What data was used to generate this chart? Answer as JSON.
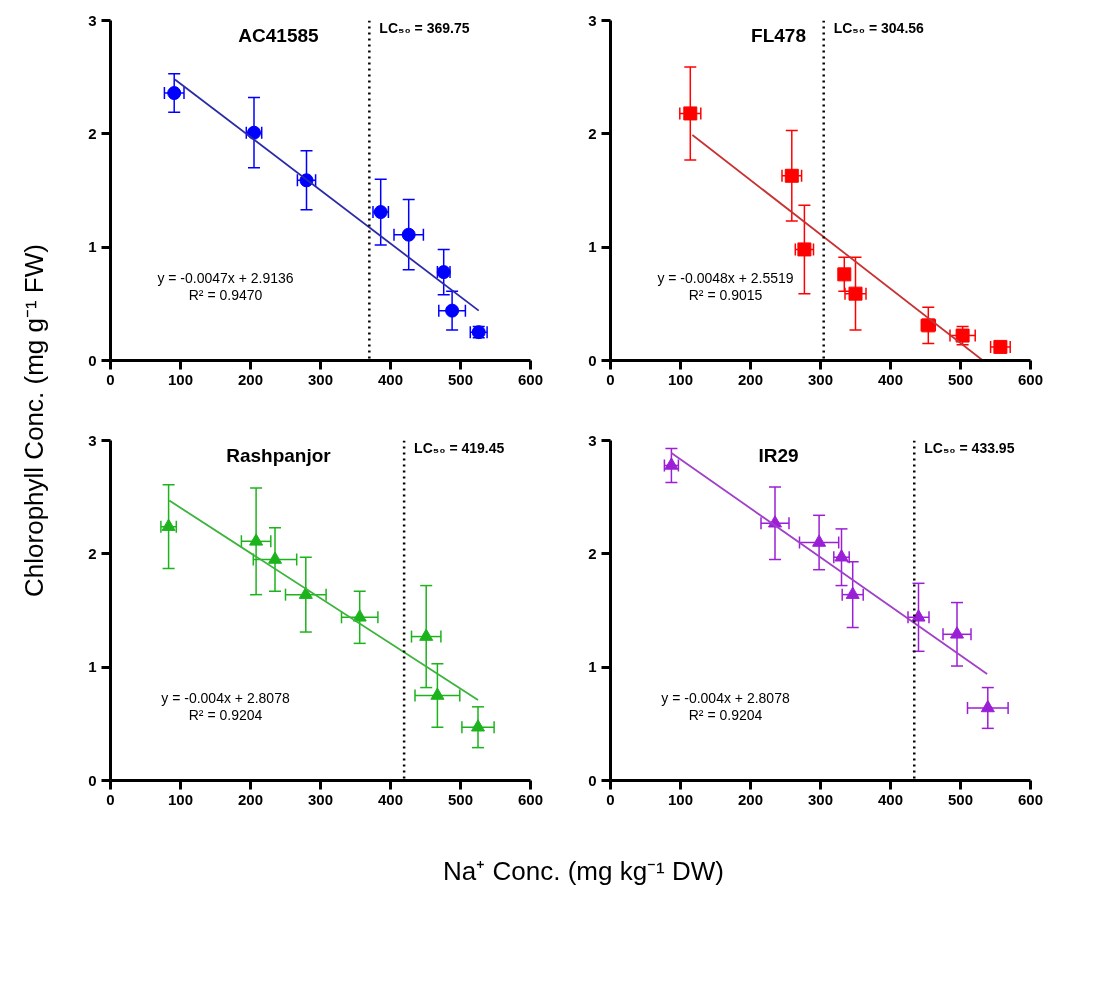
{
  "chart_data": [
    {
      "type": "scatter",
      "title": "AC41585",
      "ylabel": "Chlorophyll Conc. (mg g⁻¹ FW)",
      "xlim": [
        0,
        600
      ],
      "xticks": [
        0,
        100,
        200,
        300,
        400,
        500,
        600
      ],
      "ylim": [
        0,
        3
      ],
      "yticks": [
        0,
        1,
        2,
        3
      ],
      "marker": "circle",
      "grid": false,
      "series": [
        {
          "color": "#0000ff",
          "x": [
            91,
            205,
            280,
            386,
            426,
            476,
            488,
            526
          ],
          "values": [
            2.36,
            2.01,
            1.59,
            1.31,
            1.11,
            0.78,
            0.44,
            0.25
          ],
          "errors": [
            0.17,
            0.31,
            0.26,
            0.29,
            0.31,
            0.2,
            0.17,
            0.05
          ],
          "xerrors": [
            14,
            11,
            13,
            11,
            21,
            9,
            19,
            12
          ]
        },
        {
          "type": "line",
          "marker": "none",
          "color": "#2a2aa8",
          "x": [
            92,
            526
          ],
          "values": [
            2.48,
            0.44
          ]
        }
      ],
      "ref_lines": [
        {
          "axis": "x",
          "value": 369.75,
          "label": "LC₅₀ = 369.75",
          "color": "#000000",
          "line_style": "dotted"
        }
      ],
      "annotations": [
        "y = -0.0047x + 2.9136",
        "R² = 0.9470"
      ]
    },
    {
      "type": "scatter",
      "title": "FL478",
      "xlim": [
        0,
        600
      ],
      "xticks": [
        0,
        100,
        200,
        300,
        400,
        500,
        600
      ],
      "ylim": [
        0,
        3
      ],
      "yticks": [
        0,
        1,
        2,
        3
      ],
      "marker": "square",
      "grid": false,
      "series": [
        {
          "color": "#ff0000",
          "x": [
            114,
            259,
            277,
            334,
            350,
            454,
            503,
            557
          ],
          "values": [
            2.18,
            1.63,
            0.98,
            0.76,
            0.59,
            0.31,
            0.22,
            0.12
          ],
          "errors": [
            0.41,
            0.4,
            0.39,
            0.15,
            0.32,
            0.16,
            0.08,
            0.03
          ],
          "xerrors": [
            15,
            14,
            13,
            7,
            15,
            10,
            18,
            14
          ]
        },
        {
          "type": "line",
          "marker": "none",
          "color": "#c83232",
          "x": [
            117,
            532
          ],
          "values": [
            1.99,
            0.0
          ]
        }
      ],
      "ref_lines": [
        {
          "axis": "x",
          "value": 304.56,
          "label": "LC₅₀ = 304.56",
          "color": "#000000",
          "line_style": "dotted"
        }
      ],
      "annotations": [
        "y = -0.0048x + 2.5519",
        "R² = 0.9015"
      ]
    },
    {
      "type": "scatter",
      "title": "Rashpanjor",
      "xlabel": "Na⁺ Conc. (mg kg⁻¹ DW)",
      "xlim": [
        0,
        600
      ],
      "xticks": [
        0,
        100,
        200,
        300,
        400,
        500,
        600
      ],
      "ylim": [
        0,
        3
      ],
      "yticks": [
        0,
        1,
        2,
        3
      ],
      "marker": "triangle",
      "grid": false,
      "series": [
        {
          "color": "#1db31d",
          "x": [
            83,
            208,
            235,
            279,
            356,
            451,
            467,
            525
          ],
          "values": [
            2.24,
            2.11,
            1.95,
            1.64,
            1.44,
            1.27,
            0.75,
            0.47
          ],
          "errors": [
            0.37,
            0.47,
            0.28,
            0.33,
            0.23,
            0.45,
            0.28,
            0.18
          ],
          "xerrors": [
            11,
            21,
            31,
            29,
            26,
            21,
            32,
            23
          ]
        },
        {
          "type": "line",
          "marker": "none",
          "color": "#3cb43c",
          "x": [
            84,
            525
          ],
          "values": [
            2.47,
            0.71
          ]
        }
      ],
      "ref_lines": [
        {
          "axis": "x",
          "value": 419.45,
          "label": "LC₅₀ = 419.45",
          "color": "#000000",
          "line_style": "dotted"
        }
      ],
      "annotations": [
        "y = -0.004x + 2.8078",
        "R² = 0.9204"
      ]
    },
    {
      "type": "scatter",
      "title": "IR29",
      "xlim": [
        0,
        600
      ],
      "xticks": [
        0,
        100,
        200,
        300,
        400,
        500,
        600
      ],
      "ylim": [
        0,
        3
      ],
      "yticks": [
        0,
        1,
        2,
        3
      ],
      "marker": "triangle",
      "grid": false,
      "series": [
        {
          "color": "#9b1fd6",
          "x": [
            87,
            235,
            298,
            330,
            346,
            440,
            495,
            539
          ],
          "values": [
            2.78,
            2.27,
            2.1,
            1.97,
            1.64,
            1.44,
            1.29,
            0.64
          ],
          "errors": [
            0.15,
            0.32,
            0.24,
            0.25,
            0.29,
            0.3,
            0.28,
            0.18
          ],
          "xerrors": [
            10,
            20,
            28,
            11,
            15,
            15,
            20,
            29
          ]
        },
        {
          "type": "line",
          "marker": "none",
          "color": "#a040c8",
          "x": [
            87,
            538
          ],
          "values": [
            2.89,
            0.94
          ]
        }
      ],
      "ref_lines": [
        {
          "axis": "x",
          "value": 433.95,
          "label": "LC₅₀ = 433.95",
          "color": "#000000",
          "line_style": "dotted"
        }
      ],
      "annotations": [
        "y = -0.004x + 2.8078",
        "R² = 0.9204"
      ]
    }
  ]
}
